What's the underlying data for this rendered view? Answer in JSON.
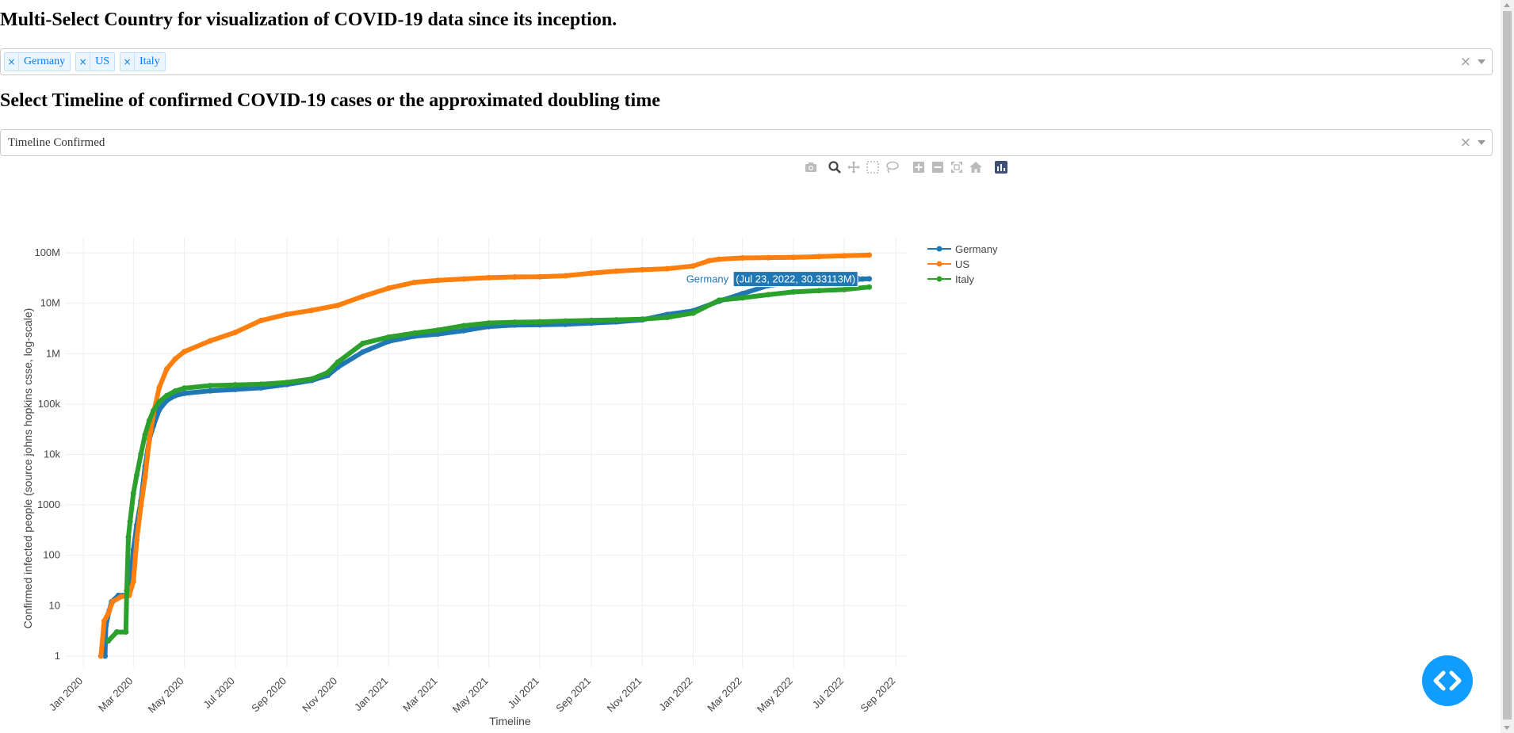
{
  "header": {
    "country_title": "Multi-Select Country for visualization of COVID-19 data since its inception.",
    "timeline_title": "Select Timeline of confirmed COVID-19 cases or the approximated doubling time"
  },
  "country_select": {
    "selected": [
      "Germany",
      "US",
      "Italy"
    ],
    "remove_glyph": "×",
    "clear_glyph": "×"
  },
  "timeline_select": {
    "value": "Timeline Confirmed",
    "clear_glyph": "×"
  },
  "modebar": {
    "icons": [
      "camera-icon",
      "zoom-icon",
      "pan-icon",
      "box-select-icon",
      "lasso-icon",
      "zoom-in-icon",
      "zoom-out-icon",
      "autoscale-icon",
      "reset-axes-icon",
      "plotly-logo-icon"
    ]
  },
  "colors": {
    "Germany": "#1f77b4",
    "US": "#ff7f0e",
    "Italy": "#2ca02c",
    "chip_text": "#007eff",
    "fab": "#119dff"
  },
  "chart_data": {
    "type": "line",
    "xlabel": "Timeline",
    "ylabel": "Confirmed infected people (source johns hopkins csse, log-scale)",
    "yscale": "log",
    "grid": true,
    "legend_position": "right",
    "xlim": [
      "2019-12-10",
      "2022-09-15"
    ],
    "ylim": [
      0.6,
      200000000
    ],
    "x_ticks": [
      "Jan 2020",
      "Mar 2020",
      "May 2020",
      "Jul 2020",
      "Sep 2020",
      "Nov 2020",
      "Jan 2021",
      "Mar 2021",
      "May 2021",
      "Jul 2021",
      "Sep 2021",
      "Nov 2021",
      "Jan 2022",
      "Mar 2022",
      "May 2022",
      "Jul 2022",
      "Sep 2022"
    ],
    "x_tick_dates": [
      "2020-01-01",
      "2020-03-01",
      "2020-05-01",
      "2020-07-01",
      "2020-09-01",
      "2020-11-01",
      "2021-01-01",
      "2021-03-01",
      "2021-05-01",
      "2021-07-01",
      "2021-09-01",
      "2021-11-01",
      "2022-01-01",
      "2022-03-01",
      "2022-05-01",
      "2022-07-01",
      "2022-09-01"
    ],
    "y_ticks": [
      "1",
      "10",
      "100",
      "1000",
      "10k",
      "100k",
      "1M",
      "10M",
      "100M"
    ],
    "y_tick_values": [
      1,
      10,
      100,
      1000,
      10000,
      100000,
      1000000,
      10000000,
      100000000
    ],
    "series": [
      {
        "name": "Germany",
        "x": [
          "2020-01-27",
          "2020-01-28",
          "2020-02-01",
          "2020-02-04",
          "2020-02-12",
          "2020-02-20",
          "2020-02-25",
          "2020-03-01",
          "2020-03-05",
          "2020-03-10",
          "2020-03-15",
          "2020-03-20",
          "2020-03-25",
          "2020-04-01",
          "2020-04-10",
          "2020-04-20",
          "2020-05-01",
          "2020-06-01",
          "2020-07-01",
          "2020-08-01",
          "2020-09-01",
          "2020-10-01",
          "2020-10-20",
          "2020-11-01",
          "2020-12-01",
          "2021-01-01",
          "2021-02-01",
          "2021-03-01",
          "2021-04-01",
          "2021-05-01",
          "2021-06-01",
          "2021-07-01",
          "2021-08-01",
          "2021-09-01",
          "2021-10-01",
          "2021-11-01",
          "2021-12-01",
          "2022-01-01",
          "2022-02-01",
          "2022-03-01",
          "2022-04-01",
          "2022-05-01",
          "2022-06-01",
          "2022-07-01",
          "2022-07-23",
          "2022-07-31"
        ],
        "y": [
          1,
          4,
          8,
          12,
          16,
          16,
          17,
          130,
          400,
          1200,
          5800,
          19800,
          37300,
          77000,
          118000,
          147000,
          163000,
          183000,
          195000,
          210000,
          245000,
          295000,
          370000,
          540000,
          1080000,
          1760000,
          2220000,
          2450000,
          2860000,
          3450000,
          3700000,
          3740000,
          3820000,
          4050000,
          4280000,
          4700000,
          6000000,
          7100000,
          11000000,
          15500000,
          22500000,
          25500000,
          27000000,
          29000000,
          30331130,
          30600000
        ]
      },
      {
        "name": "US",
        "x": [
          "2020-01-22",
          "2020-01-26",
          "2020-01-31",
          "2020-02-05",
          "2020-02-15",
          "2020-02-25",
          "2020-03-01",
          "2020-03-05",
          "2020-03-10",
          "2020-03-15",
          "2020-03-20",
          "2020-03-25",
          "2020-04-01",
          "2020-04-10",
          "2020-04-20",
          "2020-05-01",
          "2020-06-01",
          "2020-07-01",
          "2020-08-01",
          "2020-09-01",
          "2020-10-01",
          "2020-11-01",
          "2020-12-01",
          "2021-01-01",
          "2021-02-01",
          "2021-03-01",
          "2021-04-01",
          "2021-05-01",
          "2021-06-01",
          "2021-07-01",
          "2021-08-01",
          "2021-09-01",
          "2021-10-01",
          "2021-11-01",
          "2021-12-01",
          "2022-01-01",
          "2022-01-20",
          "2022-02-01",
          "2022-03-01",
          "2022-04-01",
          "2022-05-01",
          "2022-06-01",
          "2022-07-01",
          "2022-07-31"
        ],
        "y": [
          1,
          5,
          7,
          12,
          15,
          16,
          30,
          200,
          960,
          3500,
          19000,
          65000,
          213000,
          496000,
          784000,
          1100000,
          1800000,
          2640000,
          4560000,
          6040000,
          7260000,
          9100000,
          13700000,
          20000000,
          26000000,
          28500000,
          30400000,
          32300000,
          33300000,
          33600000,
          35200000,
          39600000,
          43500000,
          46300000,
          48600000,
          55000000,
          70000000,
          75000000,
          79500000,
          80500000,
          81500000,
          84500000,
          87600000,
          90500000
        ]
      },
      {
        "name": "Italy",
        "x": [
          "2020-01-31",
          "2020-02-10",
          "2020-02-21",
          "2020-02-22",
          "2020-02-24",
          "2020-02-26",
          "2020-03-01",
          "2020-03-05",
          "2020-03-10",
          "2020-03-15",
          "2020-03-20",
          "2020-03-25",
          "2020-04-01",
          "2020-04-10",
          "2020-04-20",
          "2020-05-01",
          "2020-06-01",
          "2020-07-01",
          "2020-08-01",
          "2020-09-01",
          "2020-10-01",
          "2020-10-20",
          "2020-11-01",
          "2020-12-01",
          "2021-01-01",
          "2021-02-01",
          "2021-03-01",
          "2021-04-01",
          "2021-05-01",
          "2021-06-01",
          "2021-07-01",
          "2021-08-01",
          "2021-09-01",
          "2021-10-01",
          "2021-11-01",
          "2021-12-01",
          "2022-01-01",
          "2022-02-01",
          "2022-03-01",
          "2022-04-01",
          "2022-05-01",
          "2022-06-01",
          "2022-07-01",
          "2022-07-31"
        ],
        "y": [
          2,
          3,
          3,
          20,
          229,
          470,
          1700,
          3900,
          10150,
          24700,
          47000,
          74400,
          110600,
          147500,
          181000,
          207400,
          233000,
          240800,
          247500,
          269200,
          315000,
          423000,
          680000,
          1600000,
          2130000,
          2560000,
          2930000,
          3600000,
          4060000,
          4220000,
          4290000,
          4450000,
          4590000,
          4690000,
          4840000,
          5250000,
          6380000,
          11500000,
          12800000,
          14800000,
          16800000,
          17800000,
          18700000,
          21000000
        ]
      }
    ],
    "hover_label": {
      "series": "Germany",
      "text": "(Jul 23, 2022, 30.33113M)",
      "x": "2022-07-23",
      "y": 30331130
    }
  }
}
